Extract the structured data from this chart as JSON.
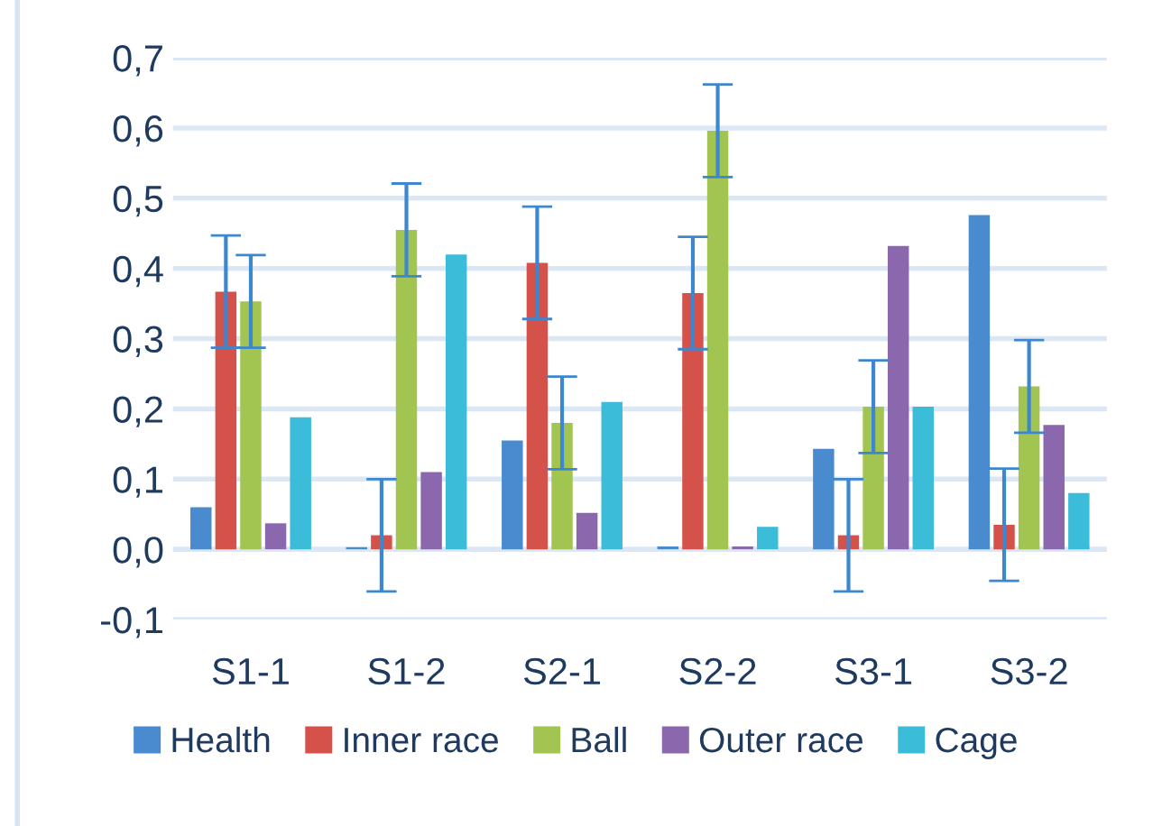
{
  "chart_data": {
    "type": "bar",
    "categories": [
      "S1-1",
      "S1-2",
      "S2-1",
      "S2-2",
      "S3-1",
      "S3-2"
    ],
    "series": [
      {
        "name": "Health",
        "color": "#4a8bd0",
        "values": [
          0.06,
          0.003,
          0.155,
          0.004,
          0.143,
          0.476
        ]
      },
      {
        "name": "Inner race",
        "color": "#d4524a",
        "values": [
          0.367,
          0.02,
          0.408,
          0.365,
          0.02,
          0.035
        ],
        "errors": [
          0.08,
          0.08,
          0.08,
          0.08,
          0.08,
          0.08
        ]
      },
      {
        "name": "Ball",
        "color": "#a2c450",
        "values": [
          0.353,
          0.455,
          0.18,
          0.596,
          0.203,
          0.232
        ],
        "errors": [
          0.066,
          0.066,
          0.066,
          0.066,
          0.066,
          0.066
        ]
      },
      {
        "name": "Outer race",
        "color": "#8b67ad",
        "values": [
          0.037,
          0.11,
          0.052,
          0.004,
          0.432,
          0.177
        ]
      },
      {
        "name": "Cage",
        "color": "#3bbcd8",
        "values": [
          0.188,
          0.42,
          0.21,
          0.032,
          0.203,
          0.08
        ]
      }
    ],
    "ylim": [
      -0.1,
      0.7
    ],
    "yticks": [
      {
        "value": -0.1,
        "label": "-0,1"
      },
      {
        "value": 0.0,
        "label": "0,0"
      },
      {
        "value": 0.1,
        "label": "0,1"
      },
      {
        "value": 0.2,
        "label": "0,2"
      },
      {
        "value": 0.3,
        "label": "0,3"
      },
      {
        "value": 0.4,
        "label": "0,4"
      },
      {
        "value": 0.5,
        "label": "0,5"
      },
      {
        "value": 0.6,
        "label": "0,6"
      },
      {
        "value": 0.7,
        "label": "0,7"
      }
    ],
    "grid": "y",
    "legend": "bottom"
  }
}
